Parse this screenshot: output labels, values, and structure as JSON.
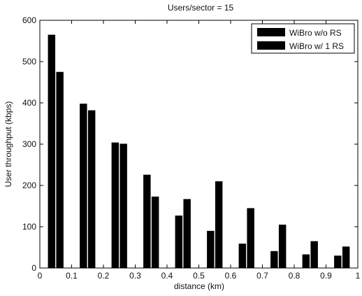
{
  "chart_data": {
    "type": "bar",
    "title": "Users/sector = 15",
    "xlabel": "distance (km)",
    "ylabel": "User throughput (kbps)",
    "xlim": [
      0,
      1
    ],
    "ylim": [
      0,
      600
    ],
    "xticks": [
      "0",
      "0.1",
      "0.2",
      "0.3",
      "0.4",
      "0.5",
      "0.6",
      "0.7",
      "0.8",
      "0.9",
      "1"
    ],
    "yticks": [
      "0",
      "100",
      "200",
      "300",
      "400",
      "500",
      "600"
    ],
    "grid": false,
    "legend_position": "top-right",
    "bar_color": "#000000",
    "x": [
      0.05,
      0.15,
      0.25,
      0.35,
      0.45,
      0.55,
      0.65,
      0.75,
      0.85,
      0.95
    ],
    "series": [
      {
        "name": "WiBro w/o RS",
        "values": [
          565,
          398,
          304,
          226,
          127,
          90,
          59,
          41,
          33,
          30
        ]
      },
      {
        "name": "WiBro w/ 1 RS",
        "values": [
          475,
          382,
          301,
          173,
          167,
          210,
          145,
          105,
          65,
          52
        ]
      }
    ]
  }
}
